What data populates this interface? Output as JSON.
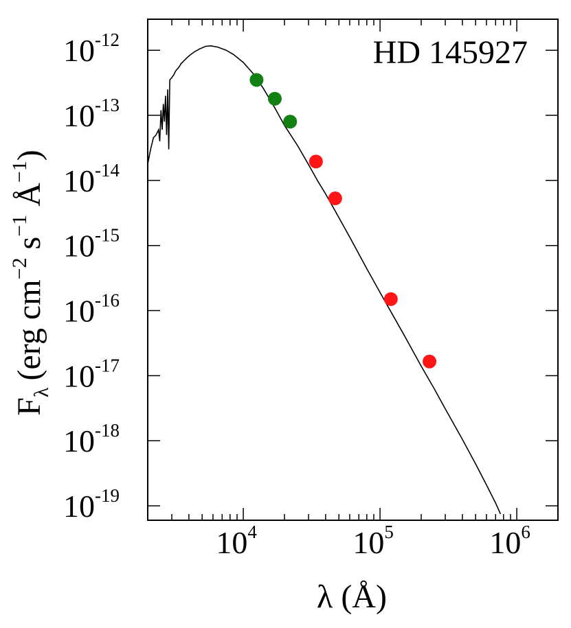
{
  "chart_data": {
    "type": "scatter",
    "title": "HD 145927",
    "title_position": "top-right",
    "xlabel": {
      "main": "λ (Å)"
    },
    "ylabel": {
      "main": "F",
      "sub": "λ",
      "units": "(erg cm",
      "exp1": "−2",
      "mid": " s",
      "exp2": "−1",
      "tail": " Å",
      "exp3": "−1",
      "close": ")"
    },
    "x_scale": "log",
    "y_scale": "log",
    "xlim": [
      2000,
      2000000
    ],
    "ylim": [
      6e-20,
      3e-12
    ],
    "x_ticks": [
      {
        "value": 10000,
        "base": "10",
        "exp": "4"
      },
      {
        "value": 100000,
        "base": "10",
        "exp": "5"
      },
      {
        "value": 1000000,
        "base": "10",
        "exp": "6"
      }
    ],
    "y_ticks": [
      {
        "value": 1e-12,
        "base": "10",
        "exp": "-12"
      },
      {
        "value": 1e-13,
        "base": "10",
        "exp": "-13"
      },
      {
        "value": 1e-14,
        "base": "10",
        "exp": "-14"
      },
      {
        "value": 1e-15,
        "base": "10",
        "exp": "-15"
      },
      {
        "value": 1e-16,
        "base": "10",
        "exp": "-16"
      },
      {
        "value": 1e-17,
        "base": "10",
        "exp": "-17"
      },
      {
        "value": 1e-18,
        "base": "10",
        "exp": "-18"
      },
      {
        "value": 1e-19,
        "base": "10",
        "exp": "-19"
      }
    ],
    "grid": false,
    "series": [
      {
        "kind": "model-line",
        "color": "#000000",
        "points": [
          [
            2000,
            1.8e-14
          ],
          [
            2100,
            3e-14
          ],
          [
            2200,
            4.5e-14
          ],
          [
            2300,
            5e-14
          ],
          [
            2400,
            6e-14
          ],
          [
            2450,
            4e-14
          ],
          [
            2500,
            1.2e-13
          ],
          [
            2550,
            6e-14
          ],
          [
            2600,
            1.5e-13
          ],
          [
            2650,
            8e-14
          ],
          [
            2700,
            2e-13
          ],
          [
            2750,
            5e-14
          ],
          [
            2800,
            2.5e-13
          ],
          [
            2850,
            3e-14
          ],
          [
            2900,
            3.5e-13
          ],
          [
            3000,
            3.8e-13
          ],
          [
            3100,
            4.2e-13
          ],
          [
            3200,
            4.8e-13
          ],
          [
            3300,
            5.2e-13
          ],
          [
            3400,
            5.6e-13
          ],
          [
            3500,
            6.2e-13
          ],
          [
            3700,
            7e-13
          ],
          [
            3900,
            7.8e-13
          ],
          [
            4100,
            8.5e-13
          ],
          [
            4400,
            9.5e-13
          ],
          [
            4800,
            1.05e-12
          ],
          [
            5300,
            1.15e-12
          ],
          [
            5800,
            1.17e-12
          ],
          [
            6500,
            1.12e-12
          ],
          [
            7500,
            1e-12
          ],
          [
            8500,
            8.6e-13
          ],
          [
            10000,
            6.5e-13
          ],
          [
            12000,
            4.2e-13
          ],
          [
            14000,
            2.6e-13
          ],
          [
            17000,
            1.3e-13
          ],
          [
            20000,
            7e-14
          ],
          [
            25000,
            3.4e-14
          ],
          [
            30000,
            1.75e-14
          ],
          [
            35000,
            9.8e-15
          ],
          [
            40000,
            6.2e-15
          ],
          [
            47000,
            3.4e-15
          ],
          [
            60000,
            1.35e-15
          ],
          [
            80000,
            4.4e-16
          ],
          [
            100000,
            1.9e-16
          ],
          [
            120000,
            9.6e-17
          ],
          [
            150000,
            4.2e-17
          ],
          [
            200000,
            1.4e-17
          ],
          [
            250000,
            6.2e-18
          ],
          [
            300000,
            3.1e-18
          ],
          [
            400000,
            1.05e-18
          ],
          [
            500000,
            4.4e-19
          ],
          [
            600000,
            2.1e-19
          ],
          [
            700000,
            1.1e-19
          ],
          [
            760000,
            7.5e-20
          ]
        ]
      },
      {
        "kind": "points",
        "color": "#138013",
        "points": [
          [
            12500,
            3.5e-13
          ],
          [
            17000,
            1.8e-13
          ],
          [
            22000,
            8e-14
          ]
        ]
      },
      {
        "kind": "points",
        "color": "#ff1515",
        "points": [
          [
            34000,
            1.95e-14
          ],
          [
            47000,
            5.3e-15
          ],
          [
            120000,
            1.5e-16
          ],
          [
            230000,
            1.65e-17
          ]
        ]
      }
    ]
  }
}
